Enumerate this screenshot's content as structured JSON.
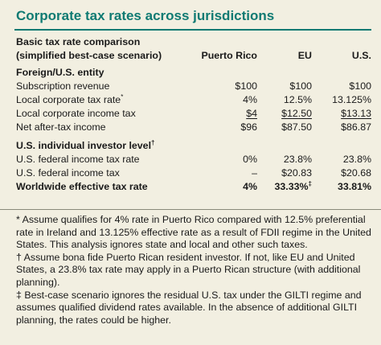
{
  "title": "Corporate tax rates across jurisdictions",
  "table": {
    "header": {
      "line1": "Basic tax rate comparison",
      "line2": "(simplified best-case scenario)",
      "col_pr": "Puerto Rico",
      "col_eu": "EU",
      "col_us": "U.S."
    },
    "section1": {
      "label": "Foreign/U.S. entity",
      "rows": [
        {
          "label": "Subscription revenue",
          "pr": "$100",
          "eu": "$100",
          "us": "$100"
        },
        {
          "label": "Local corporate tax rate",
          "mark": "*",
          "pr": "4%",
          "eu": "12.5%",
          "us": "13.125%"
        },
        {
          "label": "Local corporate income tax",
          "pr": "$4",
          "eu": "$12.50",
          "us": "$13.13"
        },
        {
          "label": "Net after-tax income",
          "pr": "$96",
          "eu": "$87.50",
          "us": "$86.87"
        }
      ]
    },
    "section2": {
      "label": "U.S. individual investor level",
      "mark": "†",
      "rows": [
        {
          "label": "U.S. federal income tax rate",
          "pr": "0%",
          "eu": "23.8%",
          "us": "23.8%"
        },
        {
          "label": "U.S. federal income tax",
          "pr": "–",
          "eu": "$20.83",
          "us": "$20.68"
        },
        {
          "label": "Worldwide effective tax rate",
          "pr": "4%",
          "eu": "33.33%",
          "eu_mark": "‡",
          "us": "33.81%"
        }
      ]
    }
  },
  "notes": {
    "n1": "* Assume qualifies for 4% rate in Puerto Rico compared with 12.5% preferential rate in Ireland and 13.125% effective rate as a result of FDII regime in the United States. This analysis ignores state and local and other such taxes.",
    "n2": "† Assume bona fide Puerto Rican resident investor. If not, like EU and United States, a 23.8% tax rate may apply in a Puerto Rican structure (with additional planning).",
    "n3": "‡ Best-case scenario ignores the residual U.S. tax under the GILTI regime and assumes qualified dividend rates available. In the absence of additional GILTI planning, the rates could be higher."
  }
}
